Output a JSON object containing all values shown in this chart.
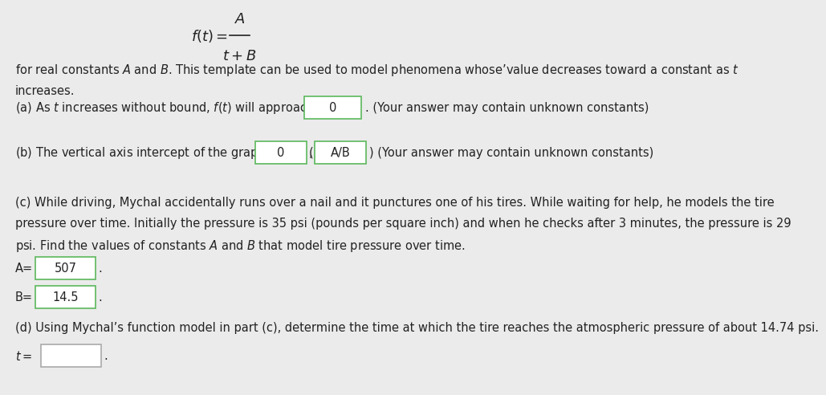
{
  "bg_color": "#ebebeb",
  "white_area_color": "#f0f0f0",
  "title_formula_top": "$f(t) = $",
  "title_formula_num": "$A$",
  "title_formula_den": "$t + B$",
  "intro_text_1": "for real constants $A$ and $B$. This template can be used to model phenomena whoseʼvalue decreases toward a constant as $t$",
  "intro_text_2": "increases.",
  "part_a_label": "(a) As $t$ increases without bound, $f(t)$ will approach",
  "part_a_box": "0",
  "part_a_suffix": ". (Your answer may contain unknown constants)",
  "part_b_label": "(b) The vertical axis intercept of the graph of $f$ is: (",
  "part_b_comma": ",",
  "part_b_box1": "0",
  "part_b_box2": "A/B",
  "part_b_suffix": ") (Your answer may contain unknown constants)",
  "part_c_line1": "(c) While driving, Mychal accidentally runs over a nail and it punctures one of his tires. While waiting for help, he models the tire",
  "part_c_line2": "pressure over time. Initially the pressure is 35 psi (pounds per square inch) and when he checks after 3 minutes, the pressure is 29",
  "part_c_line3": "psi. Find the values of constants $A$ and $B$ that model tire pressure over time.",
  "part_c_A_label": "A=",
  "part_c_A_box": "507",
  "part_c_B_label": "B=",
  "part_c_B_box": "14.5",
  "part_d_text": "(d) Using Mychal’s function model in part (c), determine the time at which the tire reaches the atmospheric pressure of about 14.74 psi.",
  "part_d_label": "$t =$",
  "part_d_box": "",
  "box_border_green": "#5cb85c",
  "box_border_gray": "#aaaaaa",
  "box_bg": "#ffffff",
  "text_color": "#222222",
  "font_size": 10.5,
  "font_size_formula": 13
}
